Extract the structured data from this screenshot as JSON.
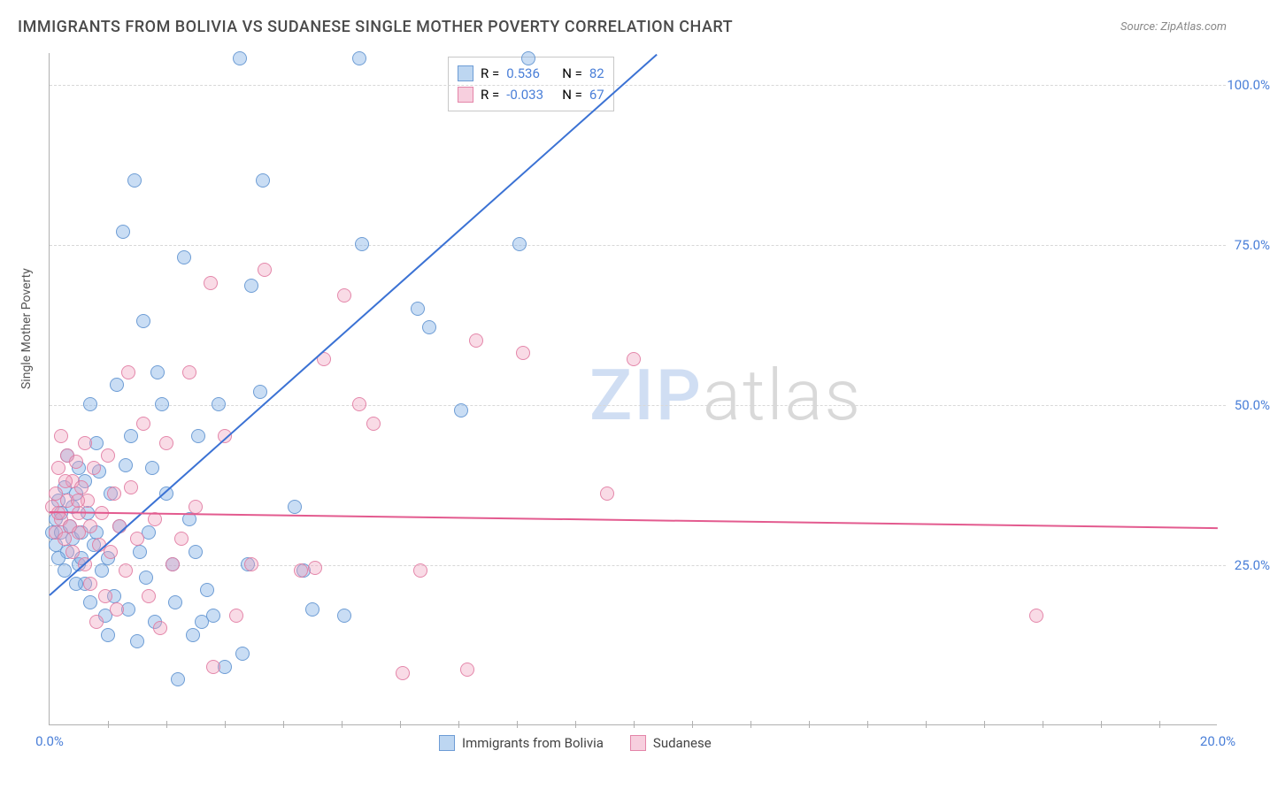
{
  "title": "IMMIGRANTS FROM BOLIVIA VS SUDANESE SINGLE MOTHER POVERTY CORRELATION CHART",
  "source_label": "Source: ZipAtlas.com",
  "ylabel": "Single Mother Poverty",
  "watermark": {
    "part1": "ZIP",
    "part2": "atlas"
  },
  "chart": {
    "type": "scatter",
    "xlim": [
      0,
      20
    ],
    "ylim": [
      0,
      105
    ],
    "xticks": [
      0,
      20
    ],
    "xtick_labels": [
      "0.0%",
      "20.0%"
    ],
    "xtick_minor": [
      1,
      2,
      3,
      4,
      5,
      6,
      7,
      8,
      9,
      10,
      11,
      12,
      13,
      14,
      15,
      16,
      17,
      18,
      19
    ],
    "yticks": [
      25,
      50,
      75,
      100
    ],
    "ytick_labels": [
      "25.0%",
      "50.0%",
      "75.0%",
      "100.0%"
    ],
    "grid_color": "#d8d8d8",
    "background_color": "#ffffff",
    "axis_color": "#b0b0b0",
    "marker_radius": 8,
    "series": [
      {
        "name": "Immigrants from Bolivia",
        "color_fill": "rgba(135,180,230,0.45)",
        "color_stroke": "rgba(100,150,210,0.9)",
        "line_color": "#3b72d4",
        "R": "0.536",
        "N": "82",
        "trend": {
          "x1": 0,
          "y1": 20.5,
          "x2": 10.4,
          "y2": 105
        },
        "points": [
          [
            0.05,
            30
          ],
          [
            0.1,
            32
          ],
          [
            0.1,
            28
          ],
          [
            0.15,
            35
          ],
          [
            0.2,
            33
          ],
          [
            0.2,
            30
          ],
          [
            0.25,
            37
          ],
          [
            0.3,
            27
          ],
          [
            0.3,
            42
          ],
          [
            0.35,
            31
          ],
          [
            0.4,
            34
          ],
          [
            0.4,
            29
          ],
          [
            0.45,
            36
          ],
          [
            0.5,
            25
          ],
          [
            0.5,
            40
          ],
          [
            0.55,
            30
          ],
          [
            0.6,
            22
          ],
          [
            0.6,
            38
          ],
          [
            0.65,
            33
          ],
          [
            0.7,
            50
          ],
          [
            0.7,
            19
          ],
          [
            0.75,
            28
          ],
          [
            0.8,
            44
          ],
          [
            0.85,
            39.5
          ],
          [
            0.9,
            24
          ],
          [
            0.95,
            17
          ],
          [
            1.0,
            14
          ],
          [
            1.0,
            26
          ],
          [
            1.05,
            36
          ],
          [
            1.1,
            20
          ],
          [
            1.15,
            53
          ],
          [
            1.2,
            31
          ],
          [
            1.25,
            77
          ],
          [
            1.3,
            40.5
          ],
          [
            1.35,
            18
          ],
          [
            1.45,
            85
          ],
          [
            1.5,
            13
          ],
          [
            1.55,
            27
          ],
          [
            1.6,
            63
          ],
          [
            1.65,
            23
          ],
          [
            1.7,
            30
          ],
          [
            1.8,
            16
          ],
          [
            1.85,
            55
          ],
          [
            1.92,
            50
          ],
          [
            2.0,
            36
          ],
          [
            2.1,
            25
          ],
          [
            2.15,
            19
          ],
          [
            2.2,
            7
          ],
          [
            2.3,
            73
          ],
          [
            2.4,
            32
          ],
          [
            2.5,
            27
          ],
          [
            2.55,
            45
          ],
          [
            2.6,
            16
          ],
          [
            2.7,
            21
          ],
          [
            2.8,
            17
          ],
          [
            2.9,
            50
          ],
          [
            3.0,
            9
          ],
          [
            3.25,
            104
          ],
          [
            3.3,
            11
          ],
          [
            3.4,
            25
          ],
          [
            3.45,
            68.5
          ],
          [
            3.6,
            52
          ],
          [
            3.65,
            85
          ],
          [
            4.2,
            34
          ],
          [
            4.35,
            24
          ],
          [
            4.5,
            18
          ],
          [
            5.05,
            17
          ],
          [
            5.3,
            104
          ],
          [
            5.35,
            75
          ],
          [
            6.3,
            65
          ],
          [
            6.5,
            62
          ],
          [
            7.05,
            49
          ],
          [
            8.05,
            75
          ],
          [
            8.2,
            104
          ],
          [
            0.15,
            26
          ],
          [
            0.25,
            24
          ],
          [
            0.45,
            22
          ],
          [
            0.55,
            26
          ],
          [
            0.8,
            30
          ],
          [
            1.4,
            45
          ],
          [
            1.75,
            40
          ],
          [
            2.45,
            14
          ]
        ]
      },
      {
        "name": "Sudanese",
        "color_fill": "rgba(240,160,190,0.38)",
        "color_stroke": "rgba(225,120,160,0.85)",
        "line_color": "#e35b8f",
        "R": "-0.033",
        "N": "67",
        "trend": {
          "x1": 0,
          "y1": 33.5,
          "x2": 20,
          "y2": 31.0
        },
        "points": [
          [
            0.05,
            34
          ],
          [
            0.1,
            36
          ],
          [
            0.1,
            30
          ],
          [
            0.15,
            40
          ],
          [
            0.2,
            32
          ],
          [
            0.2,
            45
          ],
          [
            0.25,
            29
          ],
          [
            0.3,
            42
          ],
          [
            0.3,
            35
          ],
          [
            0.35,
            31
          ],
          [
            0.4,
            38
          ],
          [
            0.4,
            27
          ],
          [
            0.45,
            41
          ],
          [
            0.5,
            33
          ],
          [
            0.5,
            30
          ],
          [
            0.55,
            37
          ],
          [
            0.6,
            44
          ],
          [
            0.6,
            25
          ],
          [
            0.65,
            35
          ],
          [
            0.7,
            22
          ],
          [
            0.7,
            31
          ],
          [
            0.75,
            40
          ],
          [
            0.8,
            16
          ],
          [
            0.85,
            28
          ],
          [
            0.9,
            33
          ],
          [
            0.95,
            20
          ],
          [
            1.0,
            42
          ],
          [
            1.05,
            27
          ],
          [
            1.1,
            36
          ],
          [
            1.15,
            18
          ],
          [
            1.2,
            31
          ],
          [
            1.3,
            24
          ],
          [
            1.35,
            55
          ],
          [
            1.4,
            37
          ],
          [
            1.5,
            29
          ],
          [
            1.6,
            47
          ],
          [
            1.7,
            20
          ],
          [
            1.8,
            32
          ],
          [
            1.9,
            15
          ],
          [
            2.0,
            44
          ],
          [
            2.1,
            25
          ],
          [
            2.25,
            29
          ],
          [
            2.4,
            55
          ],
          [
            2.5,
            34
          ],
          [
            2.75,
            69
          ],
          [
            2.8,
            9
          ],
          [
            3.0,
            45
          ],
          [
            3.2,
            17
          ],
          [
            3.45,
            25
          ],
          [
            3.68,
            71
          ],
          [
            4.3,
            24
          ],
          [
            4.55,
            24.5
          ],
          [
            4.7,
            57
          ],
          [
            5.05,
            67
          ],
          [
            5.3,
            50
          ],
          [
            5.55,
            47
          ],
          [
            6.05,
            8
          ],
          [
            6.35,
            24
          ],
          [
            7.15,
            8.5
          ],
          [
            7.3,
            60
          ],
          [
            8.1,
            58
          ],
          [
            9.55,
            36
          ],
          [
            10.0,
            57
          ],
          [
            16.9,
            17
          ],
          [
            0.15,
            33
          ],
          [
            0.28,
            38
          ],
          [
            0.48,
            35
          ]
        ]
      }
    ]
  },
  "legend_stats_labels": {
    "R": "R =",
    "N": "N ="
  },
  "bottom_legend": [
    "Immigrants from Bolivia",
    "Sudanese"
  ]
}
